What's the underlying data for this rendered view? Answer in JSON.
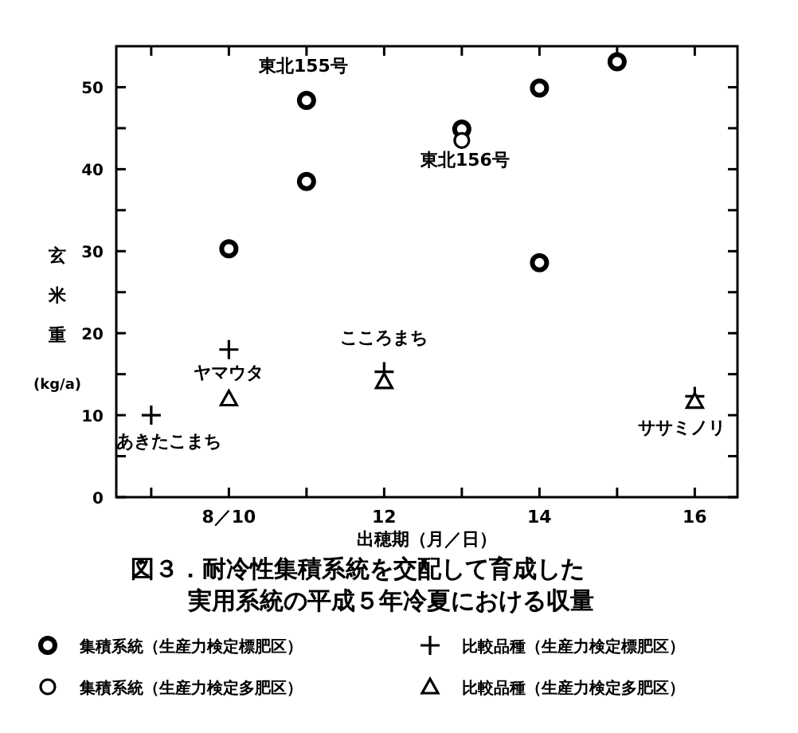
{
  "chart_data": {
    "type": "scatter",
    "title": "図３．耐冷性集積系統を交配して育成した実用系統の平成５年冷夏における収量",
    "xlabel": "出穂期（月／日）",
    "ylabel": "玄米重 (kg/a)",
    "xlim": [
      8.55,
      16.55
    ],
    "xticks": [
      {
        "value": 9,
        "label": null
      },
      {
        "value": 10,
        "label": "8／10"
      },
      {
        "value": 11,
        "label": null
      },
      12,
      {
        "value": 13,
        "label": null
      },
      14,
      {
        "value": 15,
        "label": null
      },
      16
    ],
    "ylim": [
      0,
      55
    ],
    "yticks": [
      0,
      {
        "value": 5,
        "label": null
      },
      10,
      {
        "value": 15,
        "label": null
      },
      20,
      {
        "value": 25,
        "label": null
      },
      30,
      {
        "value": 35,
        "label": null
      },
      40,
      {
        "value": 45,
        "label": null
      },
      50
    ],
    "grid": false,
    "legend": "bottom",
    "series": [
      {
        "name": "集積系統（生産力検定標肥区）",
        "color": "#000000",
        "marker": "circle",
        "x": [
          10,
          11,
          11,
          13,
          14,
          14,
          15
        ],
        "values": [
          30.3,
          38.5,
          48.4,
          44.9,
          49.9,
          28.6,
          53.1
        ]
      },
      {
        "name": "集積系統（生産力検定多肥区）",
        "color": "#000000",
        "marker": "circle",
        "x": [
          13
        ],
        "values": [
          43.5
        ]
      },
      {
        "name": "比較品種（生産力検定標肥区）",
        "color": "#000000",
        "marker": "cross",
        "x": [
          9,
          10,
          12,
          16
        ],
        "values": [
          10,
          18,
          15.3,
          12.3
        ]
      },
      {
        "name": "比較品種（生産力検定多肥区）",
        "color": "#000000",
        "marker": "triangle",
        "x": [
          10,
          12,
          16
        ],
        "values": [
          12,
          14.1,
          11.7
        ]
      }
    ],
    "annotations": [
      {
        "text": "東北155号",
        "x": 11,
        "y": 48.4
      },
      {
        "text": "東北156号",
        "x": 13,
        "y": 43.5
      },
      {
        "text": "ヤマウタ",
        "x": 10,
        "y": 18
      },
      {
        "text": "あきたこまち",
        "x": 9,
        "y": 10
      },
      {
        "text": "こころまち",
        "x": 12,
        "y": 15.3
      },
      {
        "text": "ササミノリ",
        "x": 16,
        "y": 11.7
      }
    ]
  }
}
